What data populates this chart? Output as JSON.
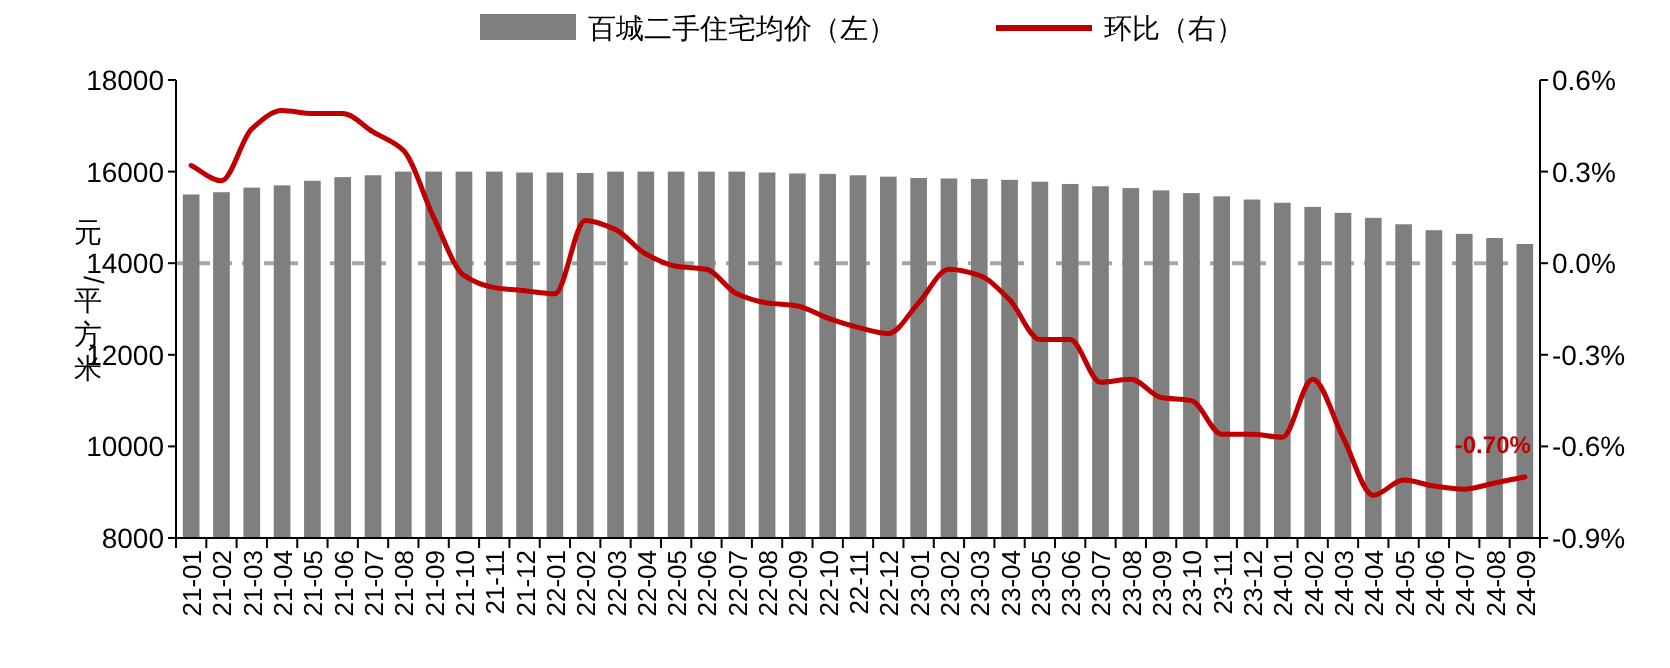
{
  "chart_data": {
    "type": "bar",
    "categories": [
      "21-01",
      "21-02",
      "21-03",
      "21-04",
      "21-05",
      "21-06",
      "21-07",
      "21-08",
      "21-09",
      "21-10",
      "21-11",
      "21-12",
      "22-01",
      "22-02",
      "22-03",
      "22-04",
      "22-05",
      "22-06",
      "22-07",
      "22-08",
      "22-09",
      "22-10",
      "22-11",
      "22-12",
      "23-01",
      "23-02",
      "23-03",
      "23-04",
      "23-05",
      "23-06",
      "23-07",
      "23-08",
      "23-09",
      "23-10",
      "23-11",
      "23-12",
      "24-01",
      "24-02",
      "24-03",
      "24-04",
      "24-05",
      "24-06",
      "24-07",
      "24-08",
      "24-09"
    ],
    "series": [
      {
        "name": "百城二手住宅均价（左）",
        "color": "#7f7f7f",
        "values": [
          15500,
          15550,
          15650,
          15700,
          15800,
          15880,
          15920,
          16000,
          16000,
          16000,
          16000,
          15980,
          15980,
          15970,
          16000,
          16000,
          16000,
          16000,
          16000,
          15980,
          15960,
          15950,
          15920,
          15890,
          15860,
          15850,
          15840,
          15820,
          15780,
          15730,
          15680,
          15640,
          15590,
          15530,
          15460,
          15390,
          15320,
          15230,
          15100,
          14990,
          14850,
          14720,
          14640,
          14550,
          14420
        ]
      },
      {
        "name": "环比（右）",
        "type": "line",
        "axis": "y2",
        "color": "#c00000",
        "values": [
          0.32,
          0.27,
          0.44,
          0.5,
          0.49,
          0.49,
          0.43,
          0.37,
          0.15,
          -0.04,
          -0.08,
          -0.09,
          -0.1,
          0.14,
          0.11,
          0.03,
          -0.01,
          -0.02,
          -0.1,
          -0.13,
          -0.14,
          -0.18,
          -0.21,
          -0.23,
          -0.13,
          -0.02,
          -0.04,
          -0.12,
          -0.25,
          -0.25,
          -0.39,
          -0.38,
          -0.44,
          -0.45,
          -0.56,
          -0.56,
          -0.57,
          -0.38,
          -0.57,
          -0.76,
          -0.71,
          -0.73,
          -0.74,
          -0.72,
          -0.7
        ],
        "value_labels": [
          null,
          null,
          null,
          null,
          null,
          null,
          null,
          null,
          null,
          null,
          null,
          null,
          null,
          null,
          null,
          null,
          null,
          null,
          null,
          null,
          null,
          null,
          null,
          null,
          null,
          null,
          null,
          null,
          null,
          null,
          null,
          null,
          null,
          null,
          null,
          null,
          null,
          null,
          null,
          null,
          null,
          null,
          null,
          null,
          "-0.70%"
        ]
      }
    ],
    "ylabel": "元/平方米",
    "ylim": [
      8000,
      18000
    ],
    "yticks": [
      8000,
      10000,
      12000,
      14000,
      16000,
      18000
    ],
    "y2lim": [
      -0.9,
      0.6
    ],
    "y2ticks": [
      {
        "value": -0.9,
        "label": "-0.9%"
      },
      {
        "value": -0.6,
        "label": "-0.6%"
      },
      {
        "value": -0.3,
        "label": "-0.3%"
      },
      {
        "value": 0,
        "label": "0.0%"
      },
      {
        "value": 0.3,
        "label": "0.3%"
      },
      {
        "value": 0.6,
        "label": "0.6%"
      }
    ],
    "ref_lines": [
      {
        "axis": "y2",
        "value": 0,
        "color": "#a6a6a6",
        "line_style": "dashed"
      }
    ],
    "legend": "top"
  }
}
